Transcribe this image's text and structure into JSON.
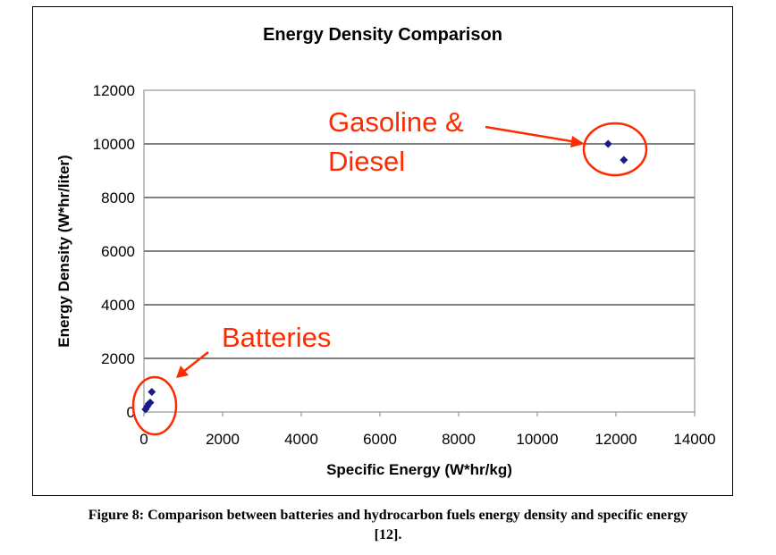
{
  "chart_data": {
    "type": "scatter",
    "title": "Energy Density Comparison",
    "xlabel": "Specific Energy (W*hr/kg)",
    "ylabel": "Energy Density (W*hr/liter)",
    "xlim": [
      0,
      14000
    ],
    "ylim": [
      0,
      12000
    ],
    "x_ticks": [
      "0",
      "2000",
      "4000",
      "6000",
      "8000",
      "10000",
      "12000",
      "14000"
    ],
    "y_ticks": [
      "0",
      "2000",
      "4000",
      "6000",
      "8000",
      "10000",
      "12000"
    ],
    "grid": "horizontal",
    "marker_color": "#1a1a8c",
    "series": [
      {
        "points": [
          {
            "x": 40,
            "y": 100
          },
          {
            "x": 80,
            "y": 200
          },
          {
            "x": 120,
            "y": 300
          },
          {
            "x": 160,
            "y": 350
          },
          {
            "x": 200,
            "y": 750
          },
          {
            "x": 11800,
            "y": 10000
          },
          {
            "x": 12200,
            "y": 9400
          }
        ]
      }
    ],
    "annotations": [
      {
        "id": "gasoline",
        "lines": [
          "Gasoline &",
          "Diesel"
        ],
        "color": "#ff2a00"
      },
      {
        "id": "batteries",
        "lines": [
          "Batteries"
        ],
        "color": "#ff2a00"
      }
    ]
  },
  "caption": {
    "line1": "Figure 8: Comparison between batteries and hydrocarbon fuels energy density and specific energy",
    "line2": "[12]."
  }
}
